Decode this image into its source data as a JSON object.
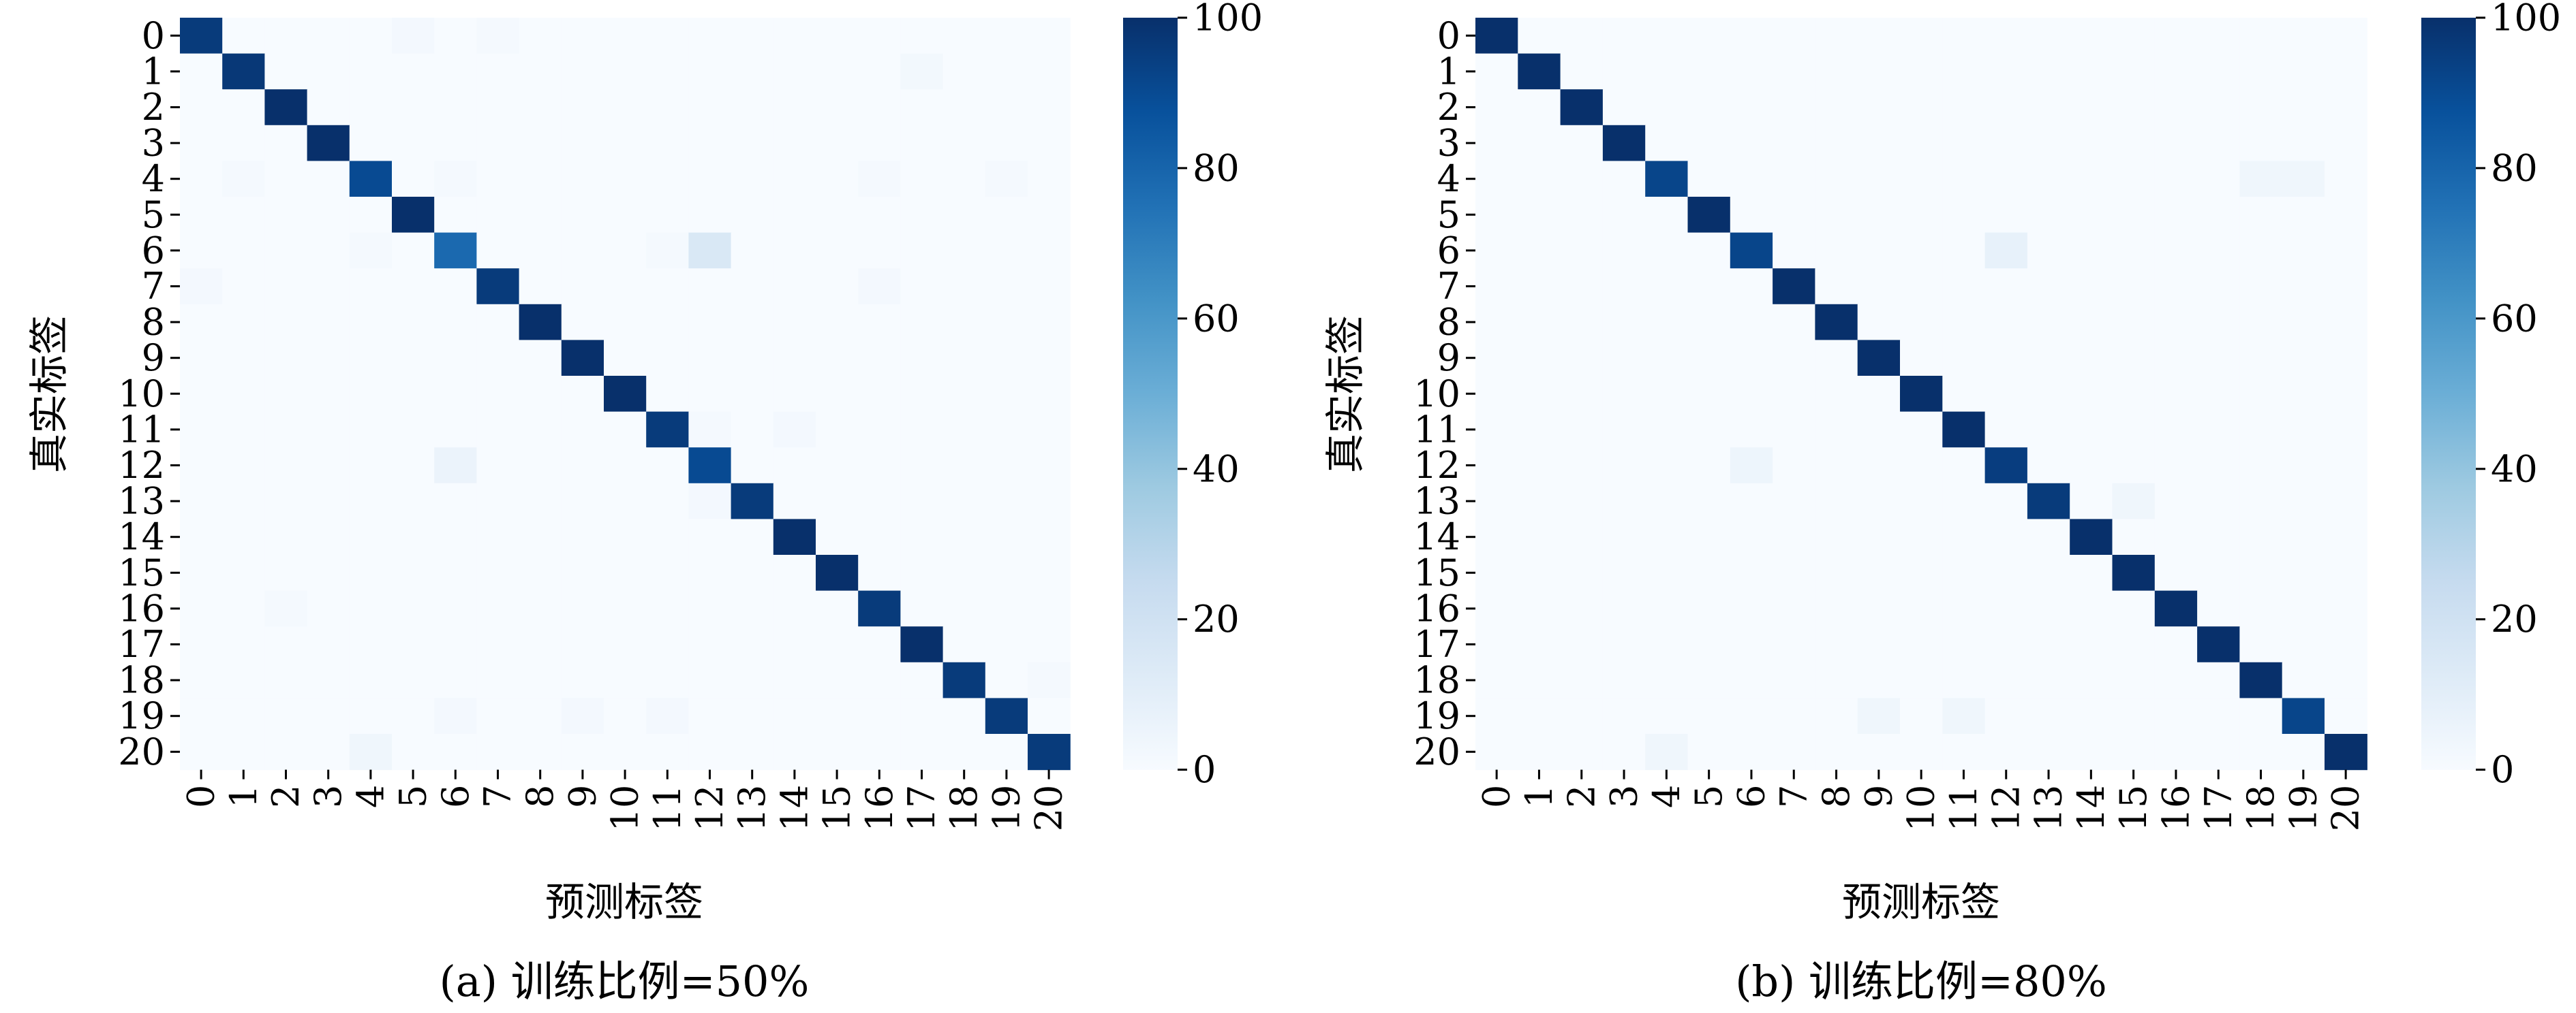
{
  "chart_data": [
    {
      "type": "heatmap",
      "panel": "a",
      "caption": "(a) 训练比例=50%",
      "xlabel": "预测标签",
      "ylabel": "真实标签",
      "x_ticks": [
        "0",
        "1",
        "2",
        "3",
        "4",
        "5",
        "6",
        "7",
        "8",
        "9",
        "10",
        "11",
        "12",
        "13",
        "14",
        "15",
        "16",
        "17",
        "18",
        "19",
        "20"
      ],
      "y_ticks": [
        "0",
        "1",
        "2",
        "3",
        "4",
        "5",
        "6",
        "7",
        "8",
        "9",
        "10",
        "11",
        "12",
        "13",
        "14",
        "15",
        "16",
        "17",
        "18",
        "19",
        "20"
      ],
      "colormap": "Blues",
      "vmin": 0,
      "vmax": 100,
      "colorbar_ticks": [
        "0",
        "20",
        "40",
        "60",
        "80",
        "100"
      ],
      "diagonal": [
        96,
        97,
        100,
        100,
        90,
        100,
        78,
        96,
        100,
        100,
        100,
        96,
        90,
        96,
        100,
        100,
        96,
        100,
        96,
        96,
        96
      ],
      "off_diagonal": [
        {
          "row": 0,
          "col": 5,
          "value": 2
        },
        {
          "row": 0,
          "col": 7,
          "value": 1.5
        },
        {
          "row": 1,
          "col": 17,
          "value": 2.5
        },
        {
          "row": 4,
          "col": 1,
          "value": 1.5
        },
        {
          "row": 4,
          "col": 6,
          "value": 1.5
        },
        {
          "row": 4,
          "col": 16,
          "value": 1.5
        },
        {
          "row": 4,
          "col": 19,
          "value": 1.5
        },
        {
          "row": 6,
          "col": 4,
          "value": 1.5
        },
        {
          "row": 6,
          "col": 11,
          "value": 1.5
        },
        {
          "row": 6,
          "col": 12,
          "value": 15
        },
        {
          "row": 7,
          "col": 0,
          "value": 2
        },
        {
          "row": 7,
          "col": 16,
          "value": 2
        },
        {
          "row": 11,
          "col": 12,
          "value": 1.5
        },
        {
          "row": 11,
          "col": 14,
          "value": 2
        },
        {
          "row": 12,
          "col": 6,
          "value": 6
        },
        {
          "row": 13,
          "col": 12,
          "value": 2
        },
        {
          "row": 16,
          "col": 2,
          "value": 1.5
        },
        {
          "row": 18,
          "col": 20,
          "value": 1.5
        },
        {
          "row": 19,
          "col": 6,
          "value": 2
        },
        {
          "row": 19,
          "col": 9,
          "value": 2
        },
        {
          "row": 19,
          "col": 11,
          "value": 2
        },
        {
          "row": 20,
          "col": 4,
          "value": 4
        }
      ]
    },
    {
      "type": "heatmap",
      "panel": "b",
      "caption": "(b) 训练比例=80%",
      "xlabel": "预测标签",
      "ylabel": "真实标签",
      "x_ticks": [
        "0",
        "1",
        "2",
        "3",
        "4",
        "5",
        "6",
        "7",
        "8",
        "9",
        "10",
        "11",
        "12",
        "13",
        "14",
        "15",
        "16",
        "17",
        "18",
        "19",
        "20"
      ],
      "y_ticks": [
        "0",
        "1",
        "2",
        "3",
        "4",
        "5",
        "6",
        "7",
        "8",
        "9",
        "10",
        "11",
        "12",
        "13",
        "14",
        "15",
        "16",
        "17",
        "18",
        "19",
        "20"
      ],
      "colormap": "Blues",
      "vmin": 0,
      "vmax": 100,
      "colorbar_ticks": [
        "0",
        "20",
        "40",
        "60",
        "80",
        "100"
      ],
      "diagonal": [
        100,
        100,
        100,
        100,
        92,
        100,
        92,
        100,
        100,
        100,
        100,
        100,
        95,
        96,
        100,
        100,
        100,
        100,
        100,
        92,
        100
      ],
      "off_diagonal": [
        {
          "row": 4,
          "col": 18,
          "value": 4
        },
        {
          "row": 4,
          "col": 19,
          "value": 4
        },
        {
          "row": 6,
          "col": 12,
          "value": 8
        },
        {
          "row": 12,
          "col": 6,
          "value": 5
        },
        {
          "row": 13,
          "col": 15,
          "value": 4
        },
        {
          "row": 19,
          "col": 9,
          "value": 4
        },
        {
          "row": 19,
          "col": 11,
          "value": 4
        },
        {
          "row": 20,
          "col": 4,
          "value": 4
        }
      ]
    }
  ]
}
